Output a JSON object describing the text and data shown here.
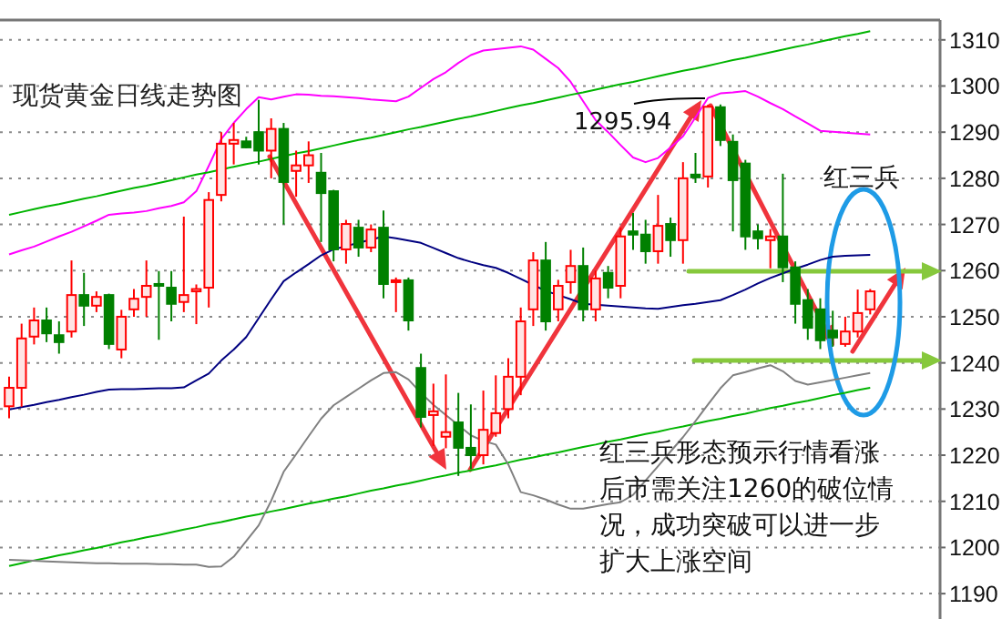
{
  "chart_data": {
    "type": "candlestick",
    "title": "现货黄金日线走势图",
    "categories": [
      null,
      null,
      null,
      null,
      null,
      null,
      null,
      null,
      null,
      null,
      null,
      null,
      null,
      null,
      null,
      null,
      null,
      null,
      null,
      null,
      null,
      null,
      null,
      null,
      null,
      null,
      null,
      null,
      null,
      null,
      null,
      null,
      null,
      null,
      null,
      null,
      null,
      null,
      null,
      null,
      null,
      null,
      null,
      null,
      null,
      null,
      null,
      null,
      null,
      null,
      null,
      null,
      null,
      null,
      null,
      null,
      null,
      null,
      null,
      null,
      null,
      null,
      null,
      null,
      null,
      null,
      null,
      null,
      null,
      null
    ],
    "ohlc": [
      [
        1230.6,
        1237,
        1228,
        1234.6
      ],
      [
        1234.6,
        1248.5,
        1230.5,
        1245.3
      ],
      [
        1245.7,
        1252,
        1244,
        1249.2
      ],
      [
        1249.2,
        1252,
        1244.5,
        1246.4
      ],
      [
        1246,
        1249,
        1242,
        1244.5
      ],
      [
        1246.8,
        1262.2,
        1245.5,
        1254.7
      ],
      [
        1254.7,
        1259.5,
        1248,
        1252.4
      ],
      [
        1252.4,
        1255.5,
        1251,
        1254.3
      ],
      [
        1254.7,
        1255,
        1243,
        1244.1
      ],
      [
        1242.9,
        1251.5,
        1241,
        1250
      ],
      [
        1251.6,
        1256,
        1250,
        1253.9
      ],
      [
        1254.3,
        1262.2,
        1250,
        1256.7
      ],
      [
        1257.1,
        1259.9,
        1245,
        1256.7
      ],
      [
        1256.3,
        1259.9,
        1249,
        1252.8
      ],
      [
        1253.2,
        1271.7,
        1251,
        1254.7
      ],
      [
        1255.5,
        1257,
        1248.4,
        1256
      ],
      [
        1256.3,
        1277,
        1252,
        1275.3
      ],
      [
        1276.4,
        1290,
        1275,
        1287.5
      ],
      [
        1287.5,
        1292,
        1283,
        1288.3
      ],
      [
        1288,
        1289,
        1286.5,
        1286.7
      ],
      [
        1290,
        1297,
        1283,
        1286
      ],
      [
        1286,
        1293,
        1280,
        1290.7
      ],
      [
        1290.7,
        1292,
        1270,
        1279.2
      ],
      [
        1281.6,
        1286,
        1276,
        1282.8
      ],
      [
        1282.8,
        1288,
        1279,
        1285
      ],
      [
        1281.2,
        1285.5,
        1266.2,
        1276.8
      ],
      [
        1277.2,
        1277.5,
        1262,
        1264.6
      ],
      [
        1264.6,
        1271,
        1261.5,
        1270.1
      ],
      [
        1269.3,
        1271,
        1263,
        1265
      ],
      [
        1265,
        1270,
        1264,
        1268.9
      ],
      [
        1269.3,
        1273,
        1254,
        1257.1
      ],
      [
        1257.5,
        1258.5,
        1251,
        1257.9
      ],
      [
        1257.9,
        1258.5,
        1247,
        1249.2
      ],
      [
        1238.9,
        1242,
        1226,
        1228.3
      ],
      [
        1228.7,
        1235.5,
        1222,
        1229.5
      ],
      [
        1224,
        1237.5,
        1221.5,
        1225
      ],
      [
        1227.1,
        1233.5,
        1215.5,
        1221.6
      ],
      [
        1221.6,
        1231,
        1217,
        1220
      ],
      [
        1220,
        1234,
        1218,
        1225.5
      ],
      [
        1224.8,
        1237.3,
        1224,
        1229.1
      ],
      [
        1230,
        1241,
        1228,
        1237
      ],
      [
        1237,
        1252,
        1233,
        1249
      ],
      [
        1251.6,
        1264,
        1248,
        1262.2
      ],
      [
        1262.2,
        1266.2,
        1247,
        1249
      ],
      [
        1251.6,
        1258,
        1249,
        1256.7
      ],
      [
        1257.5,
        1264.5,
        1255,
        1261
      ],
      [
        1261,
        1265,
        1249,
        1251.6
      ],
      [
        1251.6,
        1260,
        1249,
        1258.3
      ],
      [
        1259.5,
        1261,
        1254,
        1256.3
      ],
      [
        1256.7,
        1269.3,
        1254,
        1267.4
      ],
      [
        1268.5,
        1272.5,
        1264.5,
        1267.8
      ],
      [
        1267.8,
        1271,
        1261.5,
        1264.2
      ],
      [
        1264.2,
        1276.4,
        1261.5,
        1269.7
      ],
      [
        1270.1,
        1271.5,
        1263,
        1266.6
      ],
      [
        1266.6,
        1283.5,
        1261.5,
        1280
      ],
      [
        1280.8,
        1285.5,
        1279,
        1280.2
      ],
      [
        1280.4,
        1295.94,
        1278,
        1295.5
      ],
      [
        1295.4,
        1296,
        1287,
        1288.3
      ],
      [
        1287.9,
        1289.5,
        1268.5,
        1279.6
      ],
      [
        1283.2,
        1284,
        1264.5,
        1267.4
      ],
      [
        1268.5,
        1270,
        1264.6,
        1267
      ],
      [
        1266.6,
        1269,
        1260.5,
        1267.4
      ],
      [
        1267.4,
        1281,
        1257.5,
        1260.7
      ],
      [
        1260.7,
        1262,
        1248.5,
        1252.8
      ],
      [
        1253.6,
        1256,
        1245,
        1247.6
      ],
      [
        1251.6,
        1254,
        1243,
        1244.9
      ],
      [
        1247,
        1251.3,
        1243.5,
        1245.5
      ],
      [
        1244.1,
        1250,
        1243.5,
        1246.8
      ],
      [
        1246.8,
        1255.9,
        1245.5,
        1250.8
      ],
      [
        1251.6,
        1256,
        1250.5,
        1255.5
      ]
    ],
    "colors": [
      "#ff0000",
      "#ff0000",
      "#ff0000",
      "#008000",
      "#008000",
      "#ff0000",
      "#008000",
      "#ff0000",
      "#008000",
      "#ff0000",
      "#ff0000",
      "#ff0000",
      "#008000",
      "#008000",
      "#ff0000",
      "#ff0000",
      "#ff0000",
      "#ff0000",
      "#ff0000",
      "#008000",
      "#008000",
      "#ff0000",
      "#008000",
      "#ff0000",
      "#ff0000",
      "#008000",
      "#008000",
      "#ff0000",
      "#008000",
      "#ff0000",
      "#008000",
      "#ff0000",
      "#008000",
      "#008000",
      "#ff0000",
      "#ff0000",
      "#008000",
      "#008000",
      "#ff0000",
      "#ff0000",
      "#ff0000",
      "#ff0000",
      "#ff0000",
      "#008000",
      "#ff0000",
      "#ff0000",
      "#008000",
      "#ff0000",
      "#008000",
      "#ff0000",
      "#008000",
      "#008000",
      "#ff0000",
      "#008000",
      "#ff0000",
      "#008000",
      "#ff0000",
      "#008000",
      "#008000",
      "#008000",
      "#008000",
      "#ff0000",
      "#008000",
      "#008000",
      "#008000",
      "#008000",
      "#008000",
      "#ff0000",
      "#ff0000",
      "#ff0000"
    ],
    "series": [
      {
        "type": "line",
        "color": "#ff00ff",
        "values": [
          1263.5,
          1264.4,
          1265.2,
          1266.3,
          1267.4,
          1268.4,
          1269.6,
          1270.8,
          1272.1,
          1272.4,
          1272.6,
          1272.9,
          1273.5,
          1274.0,
          1274.8,
          1277.2,
          1282.7,
          1288.5,
          1292.0,
          1295.0,
          1297.6,
          1297.1,
          1297.7,
          1298.2,
          1298.1,
          1297.9,
          1297.8,
          1297.6,
          1297.4,
          1297.1,
          1296.9,
          1296.7,
          1297.7,
          1299.6,
          1301.5,
          1303.0,
          1305.0,
          1306.7,
          1307.7,
          1308.0,
          1308.3,
          1308.6,
          1307.9,
          1305.9,
          1303.9,
          1300.9,
          1296.7,
          1292.6,
          1290.0,
          1287.2,
          1284.5,
          1283.5,
          1284.4,
          1286.7,
          1289.1,
          1293.2,
          1297.4,
          1298.4,
          1298.6,
          1298.9,
          1297.7,
          1296.3,
          1295.0,
          1293.4,
          1291.9,
          1290.3,
          1290.1,
          1289.9,
          1289.7,
          1289.5
        ]
      },
      {
        "type": "line",
        "color": "#000080",
        "values": [
          1229.9,
          1230.4,
          1230.9,
          1231.5,
          1232.0,
          1232.6,
          1233.1,
          1233.7,
          1234.2,
          1234.3,
          1234.3,
          1234.4,
          1234.5,
          1234.5,
          1234.7,
          1236.2,
          1237.7,
          1240.5,
          1242.9,
          1245.6,
          1249.7,
          1253.8,
          1257.7,
          1259.6,
          1261.4,
          1263.3,
          1264.6,
          1265.3,
          1266.0,
          1266.7,
          1267.4,
          1267.0,
          1266.5,
          1266.0,
          1264.9,
          1263.8,
          1262.7,
          1261.9,
          1261.2,
          1260.6,
          1259.5,
          1258.2,
          1256.9,
          1255.6,
          1254.7,
          1253.8,
          1252.8,
          1252.6,
          1252.4,
          1252.2,
          1252.0,
          1251.8,
          1251.7,
          1252.1,
          1252.5,
          1252.8,
          1253.2,
          1253.6,
          1254.7,
          1255.9,
          1257.2,
          1258.4,
          1259.4,
          1260.4,
          1261.3,
          1262.3,
          1263.0,
          1263.2,
          1263.3,
          1263.4
        ]
      },
      {
        "type": "line",
        "color": "#00b400",
        "values": [
          1272.1,
          1272.7,
          1273.3,
          1273.9,
          1274.4,
          1275.0,
          1275.6,
          1276.1,
          1276.7,
          1277.3,
          1277.9,
          1278.4,
          1279.0,
          1279.6,
          1280.2,
          1280.8,
          1281.3,
          1281.9,
          1282.5,
          1283.1,
          1283.6,
          1284.2,
          1284.8,
          1285.4,
          1285.9,
          1286.5,
          1287.1,
          1287.7,
          1288.3,
          1288.8,
          1289.4,
          1290.0,
          1290.6,
          1291.1,
          1291.7,
          1292.3,
          1292.9,
          1293.4,
          1294.0,
          1294.6,
          1295.2,
          1295.8,
          1296.3,
          1296.9,
          1297.5,
          1298.1,
          1298.6,
          1299.2,
          1299.8,
          1300.4,
          1300.9,
          1301.5,
          1302.1,
          1302.7,
          1303.3,
          1303.8,
          1304.4,
          1305.0,
          1305.6,
          1306.1,
          1306.7,
          1307.3,
          1307.9,
          1308.5,
          1309.0,
          1309.6,
          1310.2,
          1310.8,
          1311.3,
          1311.9
        ]
      },
      {
        "type": "line",
        "color": "#00b400",
        "values": [
          1196.0,
          1196.6,
          1197.2,
          1197.7,
          1198.3,
          1198.8,
          1199.4,
          1199.9,
          1200.5,
          1201.1,
          1201.6,
          1202.2,
          1202.7,
          1203.3,
          1203.9,
          1204.4,
          1205.0,
          1205.5,
          1206.1,
          1206.7,
          1207.2,
          1207.8,
          1208.3,
          1208.9,
          1209.5,
          1210.0,
          1210.6,
          1211.1,
          1211.7,
          1212.3,
          1212.8,
          1213.4,
          1213.9,
          1214.5,
          1215.1,
          1215.6,
          1216.2,
          1216.7,
          1217.3,
          1217.8,
          1218.4,
          1219.0,
          1219.5,
          1220.1,
          1220.6,
          1221.2,
          1221.8,
          1222.3,
          1222.9,
          1223.4,
          1224.0,
          1224.6,
          1225.1,
          1225.7,
          1226.2,
          1226.8,
          1227.4,
          1227.9,
          1228.5,
          1229.0,
          1229.6,
          1230.2,
          1230.7,
          1231.3,
          1231.8,
          1232.4,
          1233.0,
          1233.5,
          1234.1,
          1234.6
        ]
      },
      {
        "type": "line",
        "color": "#808080",
        "values": [
          1197.3,
          1197.2,
          1197.1,
          1197.0,
          1196.9,
          1196.8,
          1196.7,
          1196.6,
          1196.6,
          1196.5,
          1196.5,
          1196.5,
          1196.4,
          1196.4,
          1196.3,
          1196.3,
          1195.8,
          1195.9,
          1198.0,
          1201.4,
          1204.8,
          1210.1,
          1216.4,
          1220.2,
          1224.1,
          1227.9,
          1230.8,
          1232.6,
          1234.4,
          1236.2,
          1237.8,
          1238.0,
          1236.4,
          1233.5,
          1230.9,
          1228.7,
          1226.5,
          1224.3,
          1223.1,
          1222.3,
          1218.0,
          1212.0,
          1211.3,
          1210.4,
          1209.3,
          1208.4,
          1208.4,
          1208.9,
          1209.4,
          1209.8,
          1211.4,
          1214.5,
          1217.6,
          1220.8,
          1223.9,
          1227.4,
          1231.0,
          1234.5,
          1237.3,
          1238.0,
          1238.8,
          1239.5,
          1238.2,
          1236.1,
          1235.3,
          1235.8,
          1236.3,
          1236.8,
          1237.3,
          1237.8
        ]
      }
    ],
    "ylim": [
      1184.5,
      1314.3
    ],
    "yticks": [
      1190,
      1200,
      1210,
      1220,
      1230,
      1240,
      1250,
      1260,
      1270,
      1280,
      1290,
      1300,
      1310
    ],
    "tick_labels": "y",
    "grid": "y",
    "annotations": [
      "1295.94",
      "红三兵",
      "红三兵形态预示行情看涨后市需关注1260的破位情况，成功突破可以进一步扩大上涨空间"
    ]
  }
}
